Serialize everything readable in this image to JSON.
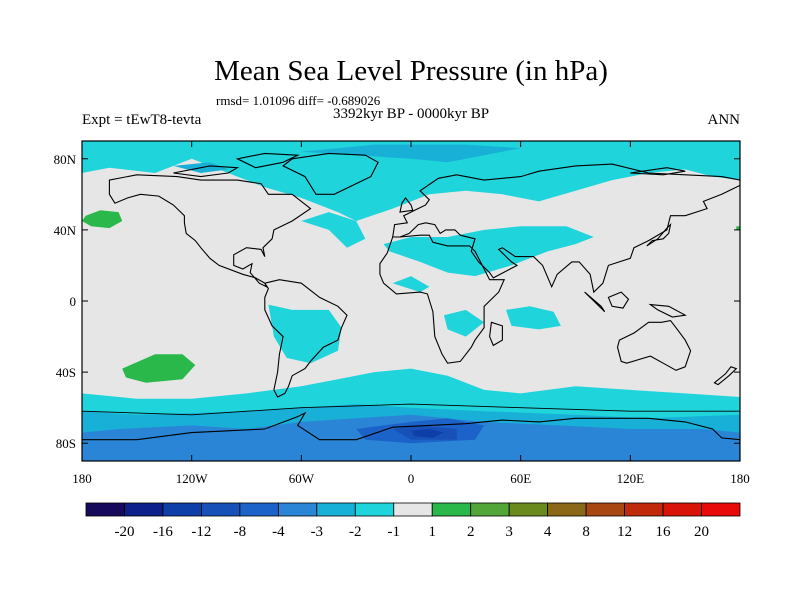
{
  "chart_data": {
    "type": "heatmap",
    "title": "Mean Sea Level Pressure (in hPa)",
    "stats_line": "rmsd= 1.01096 diff= -0.689026",
    "left_label": "Expt = tEwT8-tevta",
    "center_label": "3392kyr BP - 0000kyr BP",
    "right_label": "ANN",
    "x_ticks": [
      "180",
      "120W",
      "60W",
      "0",
      "60E",
      "120E",
      "180"
    ],
    "x_tick_values": [
      -180,
      -120,
      -60,
      0,
      60,
      120,
      180
    ],
    "y_ticks": [
      "80N",
      "40N",
      "0",
      "40S",
      "80S"
    ],
    "y_tick_values": [
      80,
      40,
      0,
      -40,
      -80
    ],
    "xlim": [
      -180,
      180
    ],
    "ylim": [
      -90,
      90
    ],
    "background_level": "-1 to 1",
    "colorbar": {
      "labels": [
        "-20",
        "-16",
        "-12",
        "-8",
        "-4",
        "-3",
        "-2",
        "-1",
        "1",
        "2",
        "3",
        "4",
        "8",
        "12",
        "16",
        "20"
      ],
      "colors": [
        "#160a5a",
        "#0c1f8a",
        "#0e3fa8",
        "#1751b8",
        "#1c63c9",
        "#2a85d6",
        "#18b0d6",
        "#20d4dc",
        "#e6e6e6",
        "#2ab84a",
        "#52a638",
        "#6a8a1e",
        "#8a6818",
        "#a84810",
        "#c02a0a",
        "#d81408",
        "#e80a08"
      ]
    },
    "regions": [
      {
        "class": "-1 to -2",
        "color": "#20d4dc",
        "note": "North Atlantic / Arctic band 45N-85N"
      },
      {
        "class": "-1 to -2",
        "color": "#20d4dc",
        "note": "North Africa / Middle East 15N-40N"
      },
      {
        "class": "-1 to -2",
        "color": "#20d4dc",
        "note": "South America 10S-35S"
      },
      {
        "class": "-1 to -2",
        "color": "#20d4dc",
        "note": "Indian Ocean 5S-15S"
      },
      {
        "class": "-1 to -2",
        "color": "#20d4dc",
        "note": "Southern Ocean band 50S-90S"
      },
      {
        "class": "-2 to -3",
        "color": "#18b0d6",
        "note": "Southern Ocean 65S-85S"
      },
      {
        "class": "-3 to -8",
        "color": "#1c63c9",
        "note": "Weddell / Antarctic coast 70S-85S"
      },
      {
        "class": "-8 to -12",
        "color": "#0e3fa8",
        "note": "Antarctic minimum near 10E 75S"
      },
      {
        "class": "1 to 2",
        "color": "#2ab84a",
        "note": "North Pacific near 165W 45N"
      },
      {
        "class": "1 to 2",
        "color": "#2ab84a",
        "note": "South Pacific near 140W 40S"
      }
    ]
  }
}
